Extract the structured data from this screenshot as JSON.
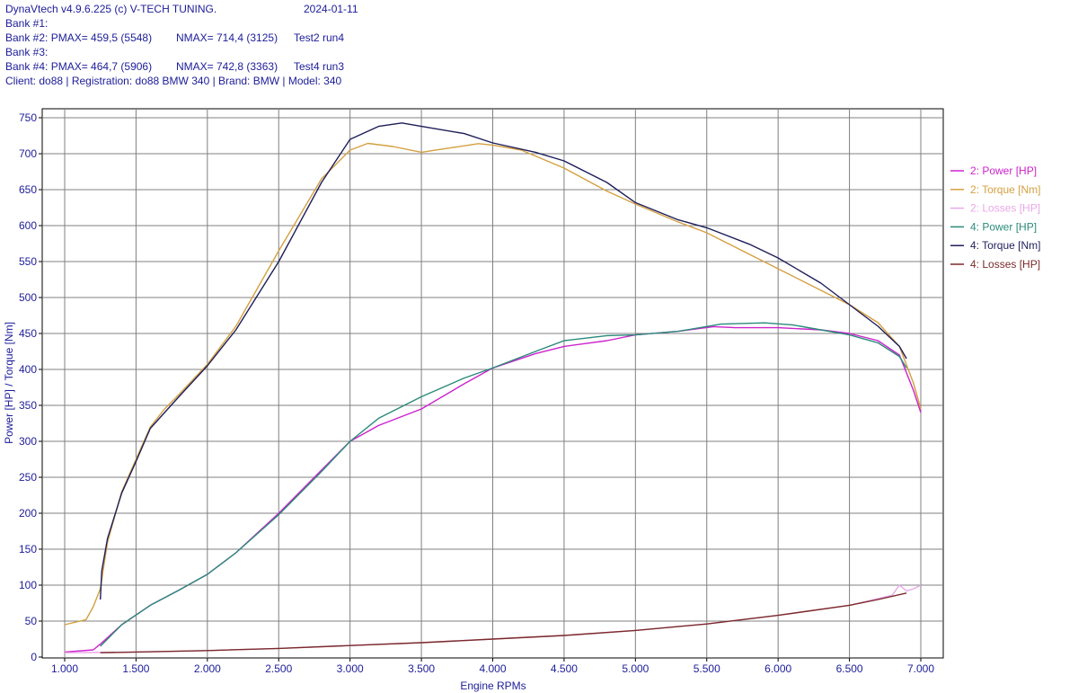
{
  "header": {
    "line1_app": "DynaVtech v4.9.6.225 (c) V-TECH TUNING.",
    "line1_date": "2024-01-11",
    "bank1": "Bank #1:",
    "bank2_label": "Bank #2: PMAX= 459,5 (5548)",
    "bank2_nmax": "NMAX= 714,4 (3125)",
    "bank2_test": "Test2 run4",
    "bank3": "Bank #3:",
    "bank4_label": "Bank #4: PMAX= 464,7 (5906)",
    "bank4_nmax": "NMAX= 742,8 (3363)",
    "bank4_test": "Test4 run3",
    "client": "Client: do88 | Registration: do88 BMW 340 | Brand: BMW | Model: 340"
  },
  "chart_data": {
    "type": "line",
    "xlabel": "Engine RPMs",
    "ylabel": "Power [HP] / Torque [Nm]",
    "xlim": [
      900,
      7150
    ],
    "ylim": [
      0,
      760
    ],
    "x_ticks": [
      1000,
      1500,
      2000,
      2500,
      3000,
      3500,
      4000,
      4500,
      5000,
      5500,
      6000,
      6500,
      7000
    ],
    "x_tick_labels": [
      "1.000",
      "1.500",
      "2.000",
      "2.500",
      "3.000",
      "3.500",
      "4.000",
      "4.500",
      "5.000",
      "5.500",
      "6.000",
      "6.500",
      "7.000"
    ],
    "y_ticks": [
      0,
      50,
      100,
      150,
      200,
      250,
      300,
      350,
      400,
      450,
      500,
      550,
      600,
      650,
      700,
      750
    ],
    "y_tick_labels": [
      "0",
      "50",
      "100",
      "150",
      "200",
      "250",
      "300",
      "350",
      "400",
      "450",
      "500",
      "550",
      "600",
      "650",
      "700",
      "750"
    ],
    "grid": true,
    "legend_position": "right",
    "series": [
      {
        "name": "2: Power [HP]",
        "color": "#cc22cc",
        "x": [
          1000,
          1200,
          1250,
          1400,
          1600,
          1800,
          2000,
          2200,
          2500,
          2800,
          3000,
          3200,
          3500,
          3800,
          4000,
          4300,
          4500,
          4800,
          5000,
          5300,
          5548,
          5700,
          6000,
          6300,
          6500,
          6700,
          6850,
          6950,
          7000
        ],
        "y": [
          7,
          10,
          18,
          45,
          72,
          93,
          115,
          145,
          200,
          260,
          300,
          322,
          345,
          380,
          402,
          422,
          432,
          440,
          448,
          453,
          459.5,
          458,
          458,
          455,
          450,
          440,
          420,
          370,
          340
        ]
      },
      {
        "name": "2: Torque [Nm]",
        "color": "#d4a040",
        "x": [
          1000,
          1150,
          1200,
          1250,
          1300,
          1400,
          1500,
          1600,
          1700,
          1800,
          2000,
          2200,
          2500,
          2800,
          3000,
          3125,
          3300,
          3500,
          3700,
          3900,
          4000,
          4200,
          4500,
          4800,
          5000,
          5300,
          5500,
          5800,
          6000,
          6300,
          6500,
          6700,
          6850,
          6950,
          7000
        ],
        "y": [
          45,
          52,
          70,
          95,
          160,
          230,
          275,
          320,
          345,
          365,
          407,
          460,
          565,
          665,
          705,
          714.4,
          710,
          702,
          708,
          714,
          712,
          705,
          680,
          648,
          630,
          605,
          590,
          560,
          540,
          510,
          490,
          465,
          432,
          380,
          345
        ]
      },
      {
        "name": "2: Losses [HP]",
        "color": "#e8a8e8",
        "x": [
          1000,
          1500,
          2000,
          2500,
          3000,
          3500,
          4000,
          4500,
          5000,
          5500,
          6000,
          6500,
          6800,
          6850,
          6900,
          6950,
          7000
        ],
        "y": [
          6,
          7,
          9,
          12,
          16,
          20,
          25,
          30,
          37,
          46,
          58,
          72,
          86,
          100,
          92,
          95,
          100
        ]
      },
      {
        "name": "4: Power [HP]",
        "color": "#2a8a7a",
        "x": [
          1250,
          1400,
          1600,
          1800,
          2000,
          2200,
          2500,
          2800,
          3000,
          3200,
          3500,
          3800,
          4000,
          4300,
          4500,
          4800,
          5000,
          5300,
          5600,
          5906,
          6100,
          6300,
          6500,
          6700,
          6850,
          6900
        ],
        "y": [
          15,
          45,
          72,
          93,
          115,
          145,
          198,
          258,
          300,
          332,
          362,
          388,
          402,
          425,
          440,
          447,
          448,
          453,
          463,
          464.7,
          462,
          455,
          448,
          437,
          418,
          402
        ]
      },
      {
        "name": "4: Torque [Nm]",
        "color": "#1e1e5a",
        "x": [
          1250,
          1260,
          1300,
          1400,
          1500,
          1600,
          1700,
          1800,
          2000,
          2200,
          2500,
          2800,
          3000,
          3200,
          3363,
          3500,
          3800,
          4000,
          4300,
          4500,
          4800,
          5000,
          5300,
          5500,
          5800,
          6000,
          6300,
          6500,
          6700,
          6850,
          6900
        ],
        "y": [
          80,
          120,
          165,
          228,
          272,
          318,
          340,
          362,
          405,
          455,
          550,
          660,
          720,
          738,
          742.8,
          738,
          728,
          715,
          702,
          690,
          660,
          632,
          608,
          597,
          574,
          555,
          520,
          490,
          460,
          432,
          415
        ]
      },
      {
        "name": "4: Losses [HP]",
        "color": "#7a2a2a",
        "x": [
          1250,
          1500,
          2000,
          2500,
          3000,
          3500,
          4000,
          4500,
          5000,
          5500,
          6000,
          6500,
          6700,
          6900
        ],
        "y": [
          6,
          7,
          9,
          12,
          16,
          20,
          25,
          30,
          37,
          46,
          58,
          72,
          80,
          89
        ]
      }
    ]
  }
}
